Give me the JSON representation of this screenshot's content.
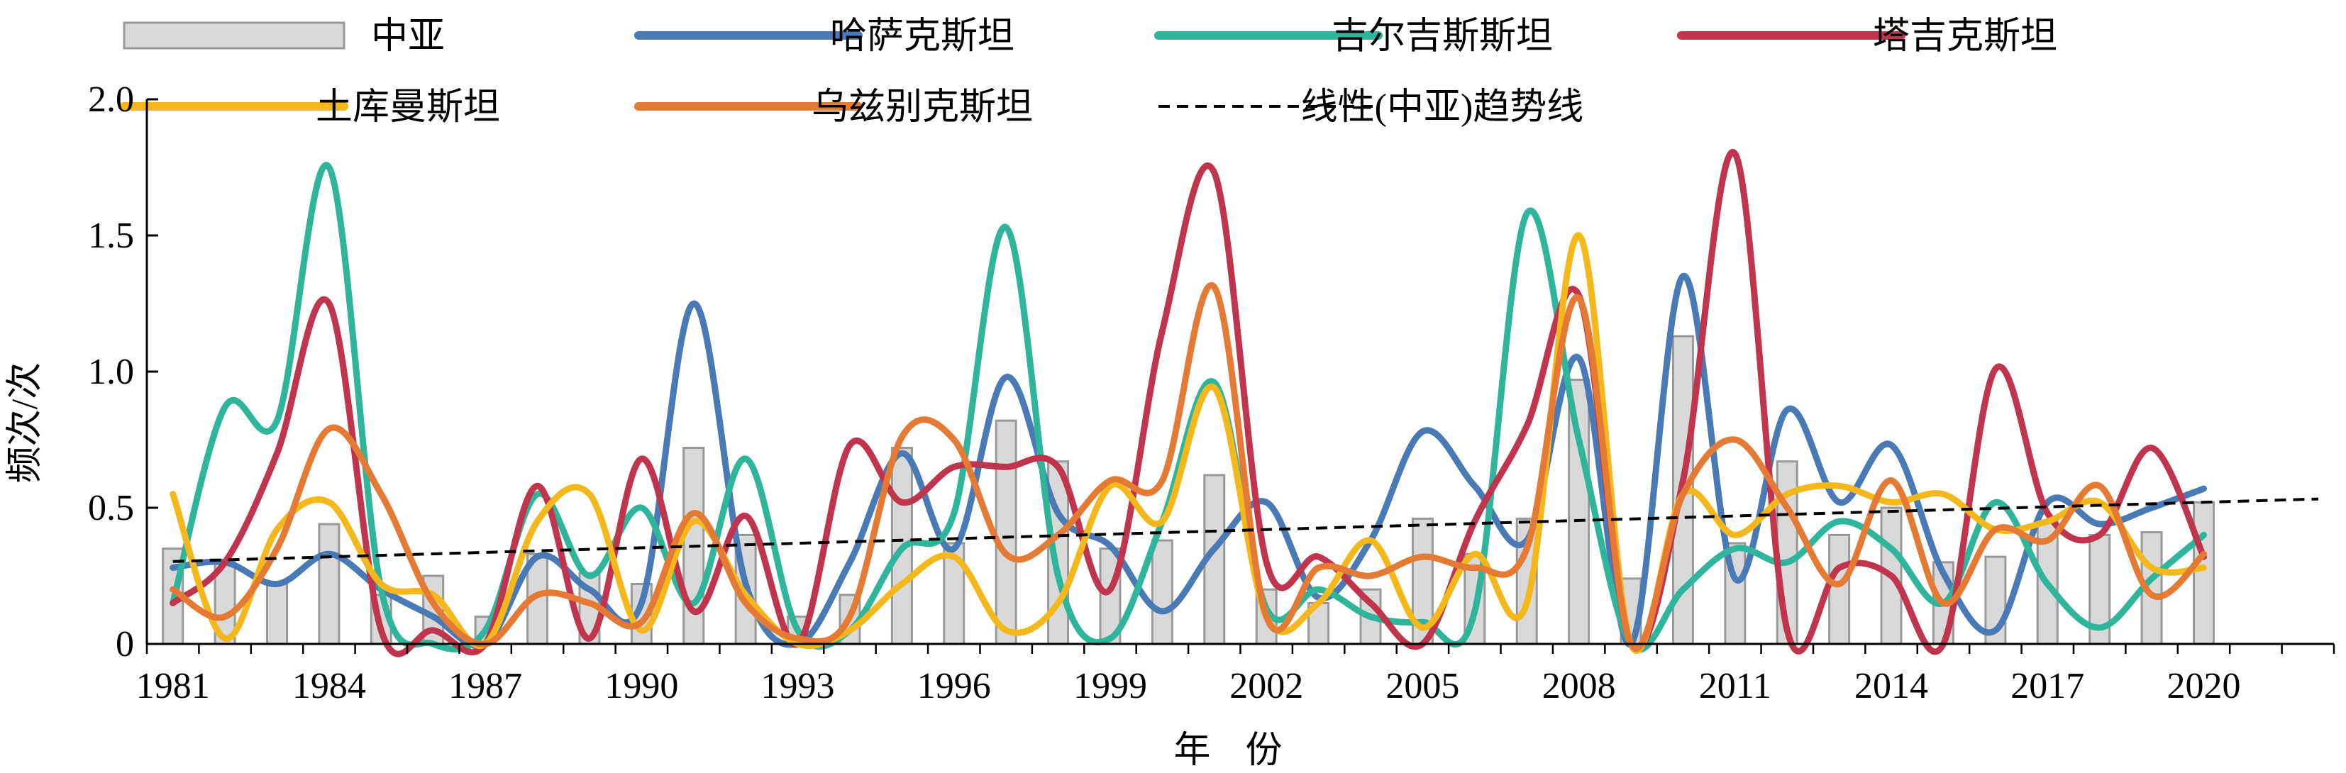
{
  "chart_data": {
    "type": "bar+line",
    "title": "",
    "xlabel": "年 份",
    "ylabel": "频次/次",
    "ylim": [
      0,
      2.0
    ],
    "yticks": [
      "0",
      "0.5",
      "1.0",
      "1.5",
      "2.0"
    ],
    "ytick_values": [
      0,
      0.5,
      1.0,
      1.5,
      2.0
    ],
    "x": [
      1981,
      1982,
      1983,
      1984,
      1985,
      1986,
      1987,
      1988,
      1989,
      1990,
      1991,
      1992,
      1993,
      1994,
      1995,
      1996,
      1997,
      1998,
      1999,
      2000,
      2001,
      2002,
      2003,
      2004,
      2005,
      2006,
      2007,
      2008,
      2009,
      2010,
      2011,
      2012,
      2013,
      2014,
      2015,
      2016,
      2017,
      2018,
      2019,
      2020
    ],
    "x_range": [
      1980.5,
      2022.5
    ],
    "xtick_labels": [
      "1981",
      "1984",
      "1987",
      "1990",
      "1993",
      "1996",
      "1999",
      "2002",
      "2005",
      "2008",
      "2011",
      "2014",
      "2017",
      "2020"
    ],
    "xtick_values": [
      1981,
      1984,
      1987,
      1990,
      1993,
      1996,
      1999,
      2002,
      2005,
      2008,
      2011,
      2014,
      2017,
      2020
    ],
    "bar_series": {
      "name": "中亚",
      "color": "#d9d9d9",
      "edge_color": "#999999",
      "values": [
        0.35,
        0.3,
        0.22,
        0.44,
        0.18,
        0.25,
        0.1,
        0.33,
        0.26,
        0.22,
        0.72,
        0.4,
        0.1,
        0.18,
        0.72,
        0.37,
        0.82,
        0.67,
        0.35,
        0.38,
        0.62,
        0.2,
        0.15,
        0.2,
        0.46,
        0.33,
        0.46,
        0.97,
        0.24,
        1.13,
        0.37,
        0.67,
        0.4,
        0.5,
        0.3,
        0.32,
        0.45,
        0.4,
        0.41,
        0.52
      ]
    },
    "series": [
      {
        "name": "哈萨克斯坦",
        "color": "#4a7ab5",
        "values": [
          0.28,
          0.3,
          0.22,
          0.33,
          0.2,
          0.1,
          0.0,
          0.32,
          0.2,
          0.15,
          1.25,
          0.22,
          0.0,
          0.3,
          0.7,
          0.35,
          0.98,
          0.48,
          0.36,
          0.12,
          0.35,
          0.52,
          0.17,
          0.38,
          0.78,
          0.58,
          0.38,
          1.05,
          0.0,
          1.35,
          0.24,
          0.86,
          0.52,
          0.73,
          0.26,
          0.05,
          0.52,
          0.44,
          0.5,
          0.57
        ]
      },
      {
        "name": "吉尔吉斯斯坦",
        "color": "#2fb59a",
        "values": [
          0.15,
          0.87,
          0.82,
          1.75,
          0.2,
          0.0,
          0.05,
          0.55,
          0.25,
          0.5,
          0.15,
          0.68,
          0.05,
          0.05,
          0.35,
          0.48,
          1.53,
          0.25,
          0.02,
          0.45,
          0.96,
          0.13,
          0.2,
          0.1,
          0.08,
          0.12,
          1.58,
          0.75,
          0.0,
          0.2,
          0.35,
          0.3,
          0.45,
          0.35,
          0.15,
          0.52,
          0.22,
          0.06,
          0.24,
          0.4
        ]
      },
      {
        "name": "塔吉克斯坦",
        "color": "#c0344d",
        "values": [
          0.15,
          0.3,
          0.7,
          1.25,
          0.05,
          0.05,
          0.0,
          0.58,
          0.02,
          0.68,
          0.12,
          0.47,
          0.0,
          0.73,
          0.52,
          0.65,
          0.65,
          0.65,
          0.2,
          1.15,
          1.73,
          0.3,
          0.32,
          0.15,
          0.0,
          0.45,
          0.8,
          1.28,
          0.0,
          0.6,
          1.8,
          0.05,
          0.28,
          0.25,
          0.0,
          1.01,
          0.48,
          0.4,
          0.72,
          0.32
        ]
      },
      {
        "name": "土库曼斯坦",
        "color": "#f5b81c",
        "values": [
          0.55,
          0.02,
          0.42,
          0.52,
          0.22,
          0.18,
          0.0,
          0.45,
          0.55,
          0.05,
          0.45,
          0.18,
          0.0,
          0.05,
          0.22,
          0.32,
          0.05,
          0.15,
          0.58,
          0.45,
          0.94,
          0.1,
          0.15,
          0.38,
          0.06,
          0.33,
          0.15,
          1.5,
          0.0,
          0.55,
          0.4,
          0.55,
          0.58,
          0.52,
          0.55,
          0.42,
          0.45,
          0.52,
          0.28,
          0.28
        ]
      },
      {
        "name": "乌兹别克斯坦",
        "color": "#e57a34",
        "values": [
          0.2,
          0.1,
          0.35,
          0.79,
          0.55,
          0.15,
          0.0,
          0.18,
          0.15,
          0.08,
          0.48,
          0.15,
          0.02,
          0.1,
          0.76,
          0.75,
          0.33,
          0.4,
          0.6,
          0.6,
          1.31,
          0.1,
          0.28,
          0.25,
          0.32,
          0.28,
          0.35,
          1.27,
          0.0,
          0.55,
          0.75,
          0.5,
          0.22,
          0.6,
          0.15,
          0.42,
          0.38,
          0.58,
          0.18,
          0.33
        ]
      }
    ],
    "trendline": {
      "name": "线性(中亚)趋势线",
      "color": "#000000",
      "style": "dashed",
      "x_range": [
        1981,
        2022.2
      ]
    },
    "legend": {
      "placement": "top",
      "entries": [
        "中亚",
        "哈萨克斯坦",
        "吉尔吉斯斯坦",
        "塔吉克斯坦",
        "土库曼斯坦",
        "乌兹别克斯坦",
        "线性(中亚)趋势线"
      ]
    }
  }
}
